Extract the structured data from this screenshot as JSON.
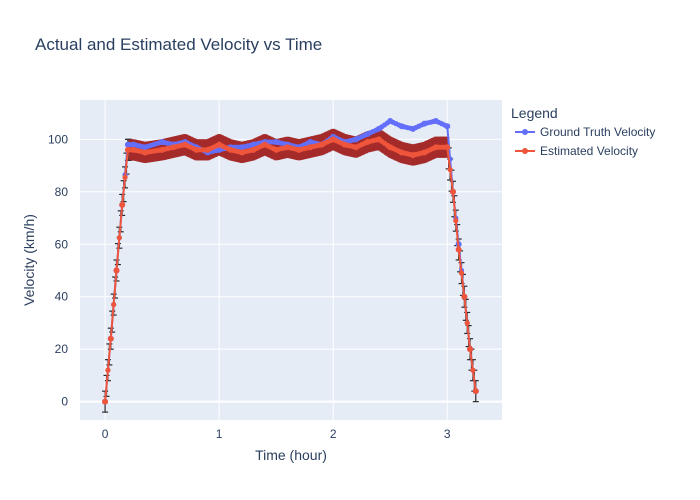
{
  "chart_data": {
    "type": "line",
    "title": "Actual and Estimated Velocity vs Time",
    "xlabel": "Time (hour)",
    "ylabel": "Velocity (km/h)",
    "xlim": [
      -0.22,
      3.48
    ],
    "ylim": [
      -7,
      115
    ],
    "xticks": [
      0,
      1,
      2,
      3
    ],
    "yticks": [
      0,
      20,
      40,
      60,
      80,
      100
    ],
    "grid": true,
    "legend": {
      "title": "Legend",
      "placement": "right"
    },
    "colors": {
      "ground_truth": "#636efa",
      "estimated": "#ef553b",
      "error_band": "#a52a2a",
      "error_tick": "#2a2a2a",
      "plot_bg": "#e5ecf6",
      "grid": "#ffffff"
    },
    "series": [
      {
        "name": "Ground Truth Velocity",
        "x": [
          0,
          0.05,
          0.1,
          0.15,
          0.2,
          0.25,
          0.35,
          0.5,
          0.6,
          0.7,
          0.8,
          0.9,
          1.0,
          1.1,
          1.2,
          1.3,
          1.4,
          1.5,
          1.6,
          1.7,
          1.8,
          1.9,
          2.0,
          2.1,
          2.2,
          2.3,
          2.4,
          2.5,
          2.6,
          2.7,
          2.8,
          2.9,
          3.0,
          3.05,
          3.1,
          3.15,
          3.2,
          3.25
        ],
        "y": [
          0,
          24,
          50,
          75,
          98,
          98,
          97,
          99,
          98,
          99,
          97,
          95,
          96,
          97,
          97,
          98,
          99,
          99,
          98,
          97,
          99,
          98,
          101,
          99,
          100,
          102,
          104,
          107,
          105,
          104,
          106,
          107,
          105,
          80,
          60,
          40,
          20,
          4
        ]
      },
      {
        "name": "Estimated Velocity",
        "x": [
          0,
          0.05,
          0.1,
          0.15,
          0.2,
          0.25,
          0.35,
          0.5,
          0.6,
          0.7,
          0.8,
          0.9,
          1.0,
          1.1,
          1.2,
          1.3,
          1.4,
          1.5,
          1.6,
          1.7,
          1.8,
          1.9,
          2.0,
          2.1,
          2.2,
          2.3,
          2.4,
          2.5,
          2.6,
          2.7,
          2.8,
          2.9,
          3.0,
          3.05,
          3.1,
          3.15,
          3.2,
          3.25
        ],
        "y": [
          0,
          24,
          50,
          75,
          96,
          96,
          95,
          96,
          97,
          98,
          96,
          96,
          98,
          96,
          95,
          96,
          98,
          96,
          97,
          96,
          97,
          98,
          100,
          98,
          97,
          99,
          100,
          97,
          95,
          94,
          95,
          97,
          97,
          80,
          58,
          40,
          20,
          4
        ],
        "error": 4
      }
    ]
  }
}
